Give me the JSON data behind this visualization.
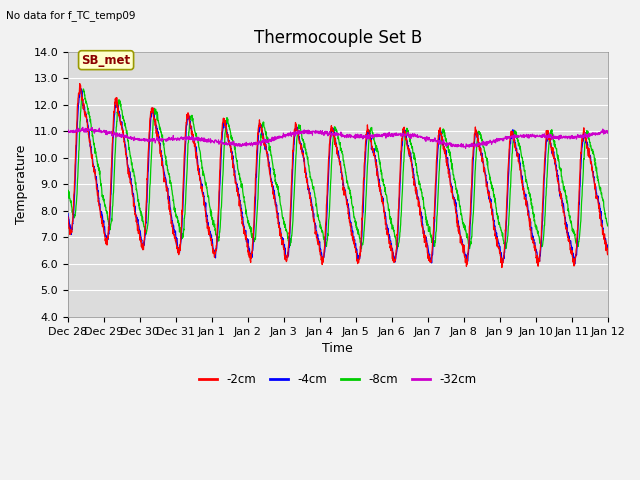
{
  "title": "Thermocouple Set B",
  "xlabel": "Time",
  "ylabel": "Temperature",
  "top_left_text": "No data for f_TC_temp09",
  "legend_label": "SB_met",
  "ylim": [
    4.0,
    14.0
  ],
  "yticks": [
    4.0,
    5.0,
    6.0,
    7.0,
    8.0,
    9.0,
    10.0,
    11.0,
    12.0,
    13.0,
    14.0
  ],
  "xtick_labels": [
    "Dec 28",
    "Dec 29",
    "Dec 30",
    "Dec 31",
    "Jan 1",
    "Jan 2",
    "Jan 3",
    "Jan 4",
    "Jan 5",
    "Jan 6",
    "Jan 7",
    "Jan 8",
    "Jan 9",
    "Jan 10",
    "Jan 11",
    "Jan 12"
  ],
  "colors": {
    "2cm": "#ff0000",
    "4cm": "#0000ff",
    "8cm": "#00cc00",
    "32cm": "#cc00cc"
  },
  "plot_bg": "#dcdcdc",
  "fig_bg": "#f2f2f2",
  "title_fontsize": 12,
  "tick_fontsize": 8,
  "axis_label_fontsize": 9
}
